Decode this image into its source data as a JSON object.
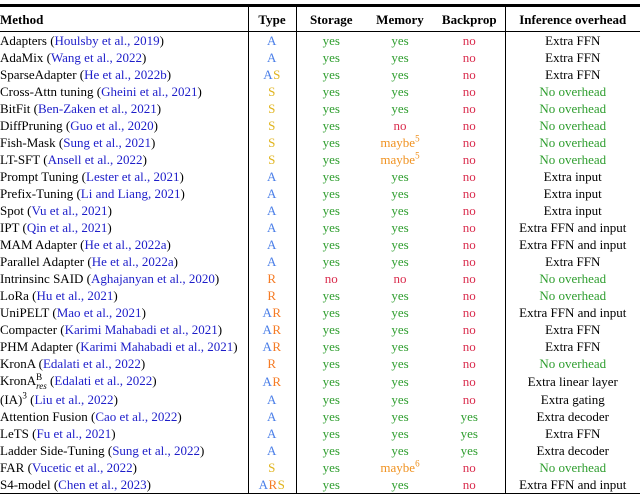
{
  "header": {
    "method": "Method",
    "type": "Type",
    "storage": "Storage",
    "memory": "Memory",
    "backprop": "Backprop",
    "inference": "Inference overhead"
  },
  "colors": {
    "type_A": "#4b7fe8",
    "type_R": "#f57b25",
    "type_S": "#e0b41e",
    "yes": "#2f9e2f",
    "no": "#da2d4e",
    "maybe": "#f09220",
    "citation": "#1d1dc9",
    "overhead_green": "#2f9e2f",
    "text": "#000000"
  },
  "rows": [
    {
      "method": "Adapters",
      "sup": "",
      "sub": "",
      "cite": "Houlsby et al., 2019",
      "type": "A",
      "storage": "yes",
      "memory": "yes",
      "memory_sup": "",
      "backprop": "no",
      "overhead": "Extra FFN",
      "overhead_green": false
    },
    {
      "method": "AdaMix",
      "sup": "",
      "sub": "",
      "cite": "Wang et al., 2022",
      "type": "A",
      "storage": "yes",
      "memory": "yes",
      "memory_sup": "",
      "backprop": "no",
      "overhead": "Extra FFN",
      "overhead_green": false
    },
    {
      "method": "SparseAdapter",
      "sup": "",
      "sub": "",
      "cite": "He et al., 2022b",
      "type": "AS",
      "storage": "yes",
      "memory": "yes",
      "memory_sup": "",
      "backprop": "no",
      "overhead": "Extra FFN",
      "overhead_green": false
    },
    {
      "method": "Cross-Attn tuning",
      "sup": "",
      "sub": "",
      "cite": "Gheini et al., 2021",
      "type": "S",
      "storage": "yes",
      "memory": "yes",
      "memory_sup": "",
      "backprop": "no",
      "overhead": "No overhead",
      "overhead_green": true
    },
    {
      "method": "BitFit",
      "sup": "",
      "sub": "",
      "cite": "Ben-Zaken et al., 2021",
      "type": "S",
      "storage": "yes",
      "memory": "yes",
      "memory_sup": "",
      "backprop": "no",
      "overhead": "No overhead",
      "overhead_green": true
    },
    {
      "method": "DiffPruning",
      "sup": "",
      "sub": "",
      "cite": "Guo et al., 2020",
      "type": "S",
      "storage": "yes",
      "memory": "no",
      "memory_sup": "",
      "backprop": "no",
      "overhead": "No overhead",
      "overhead_green": true
    },
    {
      "method": "Fish-Mask",
      "sup": "",
      "sub": "",
      "cite": "Sung et al., 2021",
      "type": "S",
      "storage": "yes",
      "memory": "maybe",
      "memory_sup": "5",
      "backprop": "no",
      "overhead": "No overhead",
      "overhead_green": true
    },
    {
      "method": "LT-SFT",
      "sup": "",
      "sub": "",
      "cite": "Ansell et al., 2022",
      "type": "S",
      "storage": "yes",
      "memory": "maybe",
      "memory_sup": "5",
      "backprop": "no",
      "overhead": "No overhead",
      "overhead_green": true
    },
    {
      "method": "Prompt Tuning",
      "sup": "",
      "sub": "",
      "cite": "Lester et al., 2021",
      "type": "A",
      "storage": "yes",
      "memory": "yes",
      "memory_sup": "",
      "backprop": "no",
      "overhead": "Extra input",
      "overhead_green": false
    },
    {
      "method": "Prefix-Tuning",
      "sup": "",
      "sub": "",
      "cite": "Li and Liang, 2021",
      "type": "A",
      "storage": "yes",
      "memory": "yes",
      "memory_sup": "",
      "backprop": "no",
      "overhead": "Extra input",
      "overhead_green": false
    },
    {
      "method": "Spot",
      "sup": "",
      "sub": "",
      "cite": "Vu et al., 2021",
      "type": "A",
      "storage": "yes",
      "memory": "yes",
      "memory_sup": "",
      "backprop": "no",
      "overhead": "Extra input",
      "overhead_green": false
    },
    {
      "method": "IPT",
      "sup": "",
      "sub": "",
      "cite": "Qin et al., 2021",
      "type": "A",
      "storage": "yes",
      "memory": "yes",
      "memory_sup": "",
      "backprop": "no",
      "overhead": "Extra FFN and input",
      "overhead_green": false
    },
    {
      "method": "MAM Adapter",
      "sup": "",
      "sub": "",
      "cite": "He et al., 2022a",
      "type": "A",
      "storage": "yes",
      "memory": "yes",
      "memory_sup": "",
      "backprop": "no",
      "overhead": "Extra FFN and input",
      "overhead_green": false
    },
    {
      "method": "Parallel Adapter",
      "sup": "",
      "sub": "",
      "cite": "He et al., 2022a",
      "type": "A",
      "storage": "yes",
      "memory": "yes",
      "memory_sup": "",
      "backprop": "no",
      "overhead": "Extra FFN",
      "overhead_green": false
    },
    {
      "method": "Intrinsinc SAID",
      "sup": "",
      "sub": "",
      "cite": "Aghajanyan et al., 2020",
      "type": "R",
      "storage": "no",
      "memory": "no",
      "memory_sup": "",
      "backprop": "no",
      "overhead": "No overhead",
      "overhead_green": true
    },
    {
      "method": "LoRa",
      "sup": "",
      "sub": "",
      "cite": "Hu et al., 2021",
      "type": "R",
      "storage": "yes",
      "memory": "yes",
      "memory_sup": "",
      "backprop": "no",
      "overhead": "No overhead",
      "overhead_green": true
    },
    {
      "method": "UniPELT",
      "sup": "",
      "sub": "",
      "cite": "Mao et al., 2021",
      "type": "AR",
      "storage": "yes",
      "memory": "yes",
      "memory_sup": "",
      "backprop": "no",
      "overhead": "Extra FFN and input",
      "overhead_green": false
    },
    {
      "method": "Compacter",
      "sup": "",
      "sub": "",
      "cite": "Karimi Mahabadi et al., 2021",
      "type": "AR",
      "storage": "yes",
      "memory": "yes",
      "memory_sup": "",
      "backprop": "no",
      "overhead": "Extra FFN",
      "overhead_green": false
    },
    {
      "method": "PHM Adapter",
      "sup": "",
      "sub": "",
      "cite": "Karimi Mahabadi et al., 2021",
      "type": "AR",
      "storage": "yes",
      "memory": "yes",
      "memory_sup": "",
      "backprop": "no",
      "overhead": "Extra FFN",
      "overhead_green": false
    },
    {
      "method": "KronA",
      "sup": "",
      "sub": "",
      "cite": "Edalati et al., 2022",
      "type": "R",
      "storage": "yes",
      "memory": "yes",
      "memory_sup": "",
      "backprop": "no",
      "overhead": "No overhead",
      "overhead_green": true
    },
    {
      "method": "KronA",
      "sup": "B",
      "sub": "res",
      "cite": "Edalati et al., 2022",
      "type": "AR",
      "storage": "yes",
      "memory": "yes",
      "memory_sup": "",
      "backprop": "no",
      "overhead": "Extra linear layer",
      "overhead_green": false
    },
    {
      "method": "(IA)",
      "sup": "3",
      "sub": "",
      "cite": "Liu et al., 2022",
      "type": "A",
      "storage": "yes",
      "memory": "yes",
      "memory_sup": "",
      "backprop": "no",
      "overhead": "Extra gating",
      "overhead_green": false
    },
    {
      "method": "Attention Fusion",
      "sup": "",
      "sub": "",
      "cite": "Cao et al., 2022",
      "type": "A",
      "storage": "yes",
      "memory": "yes",
      "memory_sup": "",
      "backprop": "yes",
      "overhead": "Extra decoder",
      "overhead_green": false
    },
    {
      "method": "LeTS",
      "sup": "",
      "sub": "",
      "cite": "Fu et al., 2021",
      "type": "A",
      "storage": "yes",
      "memory": "yes",
      "memory_sup": "",
      "backprop": "yes",
      "overhead": "Extra FFN",
      "overhead_green": false
    },
    {
      "method": "Ladder Side-Tuning",
      "sup": "",
      "sub": "",
      "cite": "Sung et al., 2022",
      "type": "A",
      "storage": "yes",
      "memory": "yes",
      "memory_sup": "",
      "backprop": "yes",
      "overhead": "Extra decoder",
      "overhead_green": false
    },
    {
      "method": "FAR",
      "sup": "",
      "sub": "",
      "cite": "Vucetic et al., 2022",
      "type": "S",
      "storage": "yes",
      "memory": "maybe",
      "memory_sup": "6",
      "backprop": "no",
      "overhead": "No overhead",
      "overhead_green": true
    },
    {
      "method": "S4-model",
      "sup": "",
      "sub": "",
      "cite": "Chen et al., 2023",
      "type": "ARS",
      "storage": "yes",
      "memory": "yes",
      "memory_sup": "",
      "backprop": "no",
      "overhead": "Extra FFN and input",
      "overhead_green": false
    }
  ]
}
